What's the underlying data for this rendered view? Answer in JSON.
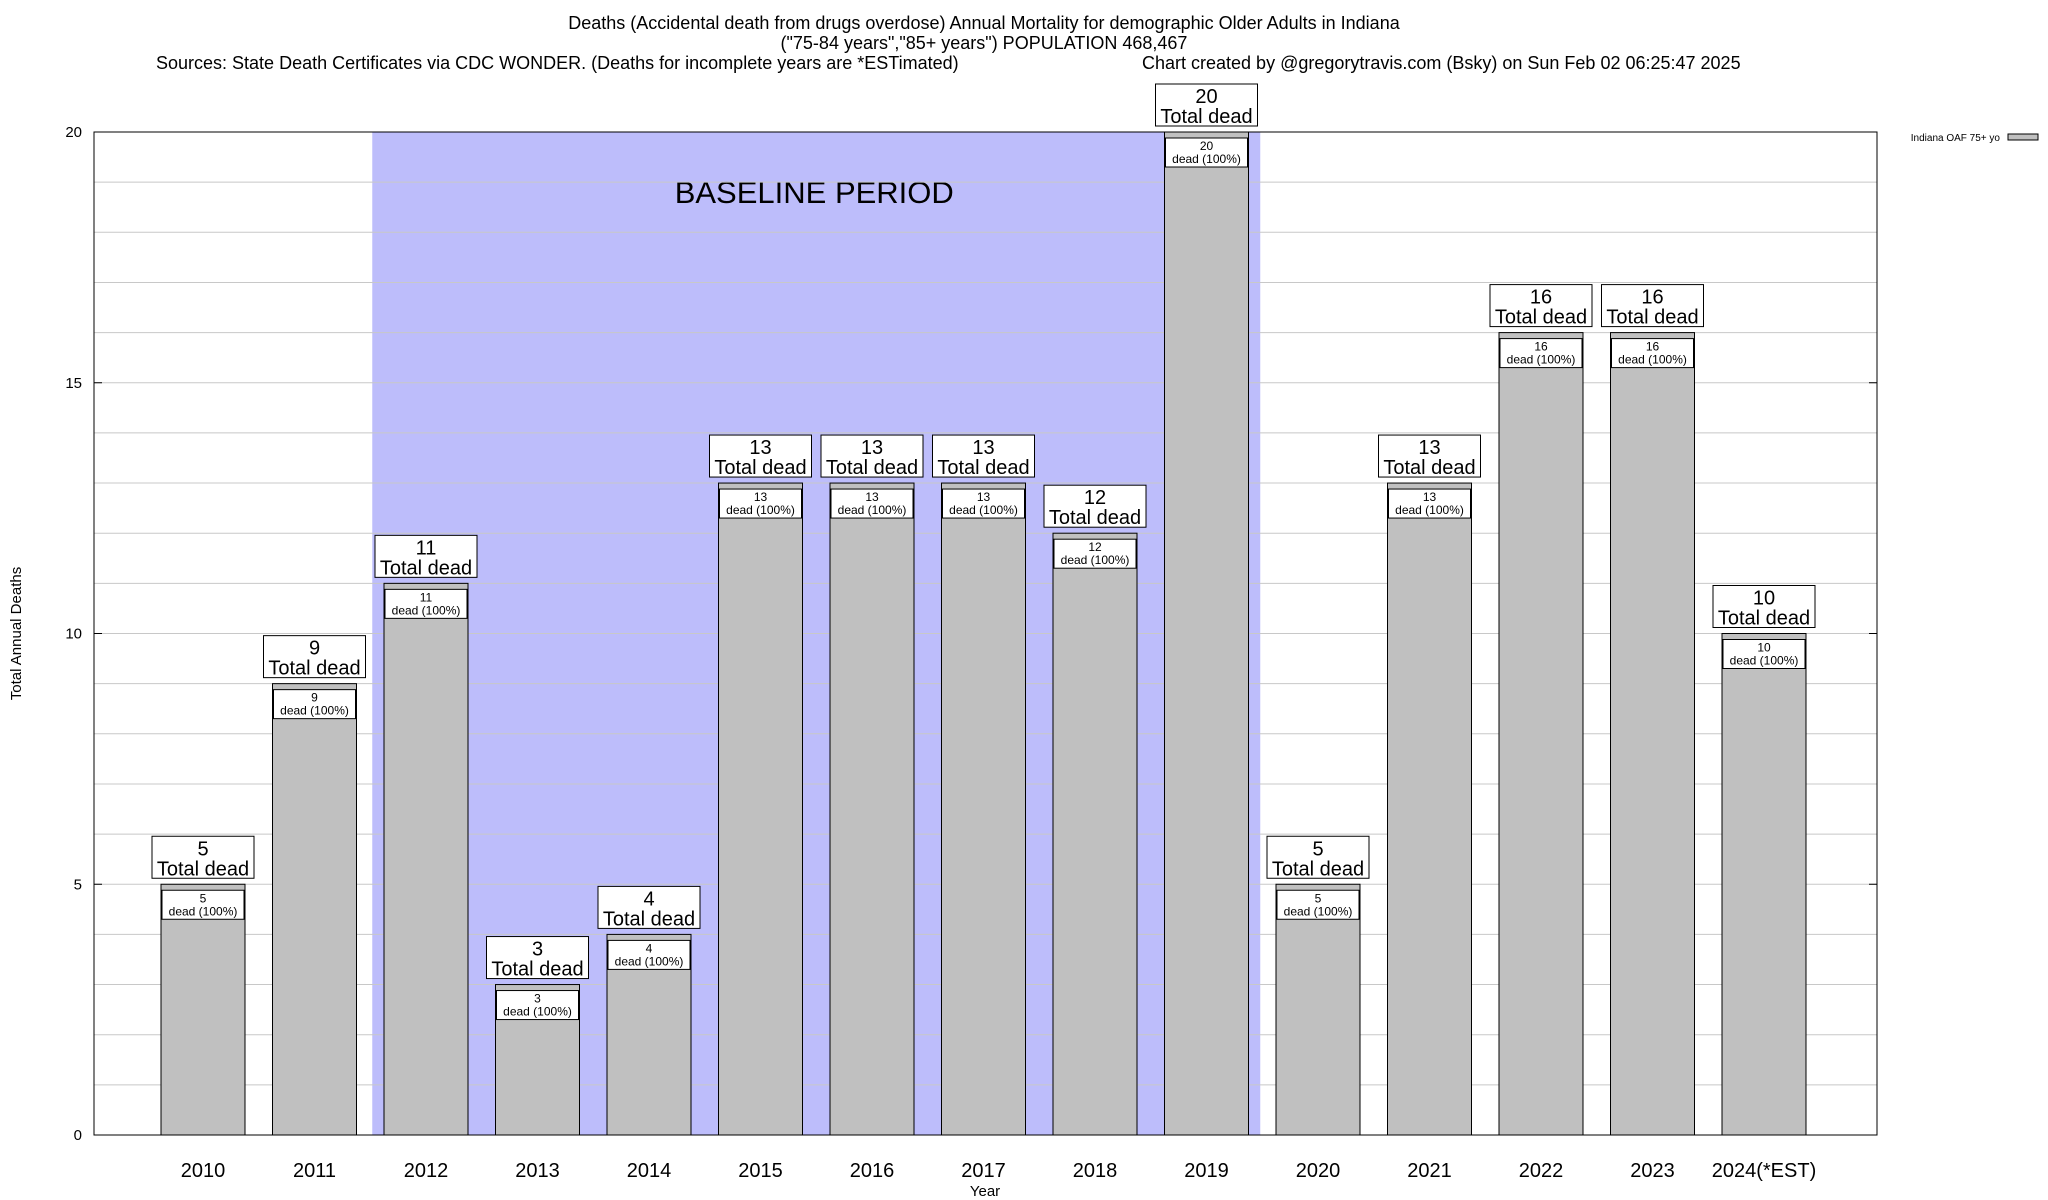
{
  "header": {
    "title_line1": "Deaths (Accidental death from drugs overdose) Annual Mortality for demographic Older Adults in Indiana",
    "title_line2": "(\"75-84 years\",\"85+ years\") POPULATION 468,467",
    "sources": "Sources: State Death Certificates via CDC WONDER. (Deaths for incomplete years are *ESTimated)",
    "credit": "Chart created by @gregorytravis.com (Bsky) on Sun Feb 02 06:25:47 2025"
  },
  "chart_data": {
    "type": "bar",
    "xlabel": "Year",
    "ylabel": "Total Annual Deaths",
    "ylim": [
      0,
      20
    ],
    "yticks": [
      0,
      5,
      10,
      15,
      20
    ],
    "grid": true,
    "legend": {
      "placement": "top-right",
      "label": "Indiana OAF 75+ yo"
    },
    "categories": [
      "2010",
      "2011",
      "2012",
      "2013",
      "2014",
      "2015",
      "2016",
      "2017",
      "2018",
      "2019",
      "2020",
      "2021",
      "2022",
      "2023",
      "2024(*EST)"
    ],
    "series": [
      {
        "name": "Indiana OAF 75+ yo",
        "values": [
          5,
          9,
          11,
          3,
          4,
          13,
          13,
          13,
          12,
          20,
          5,
          13,
          16,
          16,
          10
        ]
      }
    ],
    "total_label_suffix": "Total dead",
    "inner_label_suffix": "dead (100%)",
    "baseline_period": {
      "label": "BASELINE PERIOD",
      "start": "2012",
      "end": "2019"
    },
    "colors": {
      "bar": "#c0c0c0",
      "baseline": "#bdbdfb",
      "grid": "#c8c8c8"
    }
  }
}
